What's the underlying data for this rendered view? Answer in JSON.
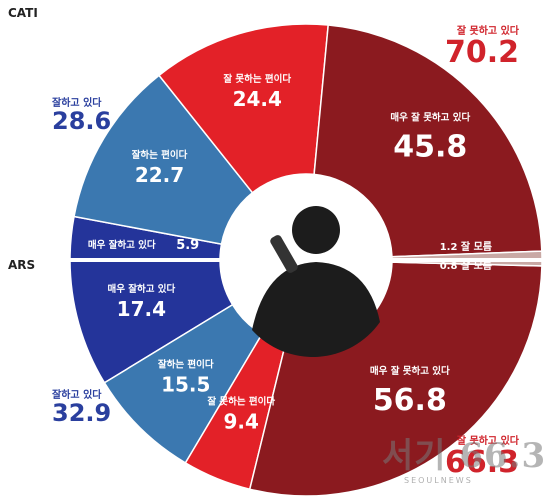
{
  "chart_data": {
    "type": "pie",
    "style": "donut, split into two halves",
    "groups": [
      {
        "name": "CATI",
        "side": "top",
        "slices": [
          {
            "label": "매우 잘하고 있다",
            "value": 5.9,
            "color": "#24349a"
          },
          {
            "label": "잘하는 편이다",
            "value": 22.7,
            "color": "#3b78b0"
          },
          {
            "label": "잘 못하는 편이다",
            "value": 24.4,
            "color": "#e32128"
          },
          {
            "label": "매우 잘 못하고 있다",
            "value": 45.8,
            "color": "#8b1a1f"
          },
          {
            "label": "잘 모름",
            "value": 1.2,
            "color": "#c9a9a5"
          }
        ],
        "totals": [
          {
            "label": "잘하고 있다",
            "value": "28.6"
          },
          {
            "label": "잘 못하고 있다",
            "value": "70.2"
          }
        ]
      },
      {
        "name": "ARS",
        "side": "bottom",
        "slices": [
          {
            "label": "매우 잘하고 있다",
            "value": 17.4,
            "color": "#24349a"
          },
          {
            "label": "잘하는 편이다",
            "value": 15.5,
            "color": "#3b78b0"
          },
          {
            "label": "잘 못하는 편이다",
            "value": 9.4,
            "color": "#e32128"
          },
          {
            "label": "매우 잘 못하고 있다",
            "value": 56.8,
            "color": "#8b1a1f"
          },
          {
            "label": "잘 모름",
            "value": 0.8,
            "color": "#c9a9a5"
          }
        ],
        "totals": [
          {
            "label": "잘하고 있다",
            "value": "32.9"
          },
          {
            "label": "잘 못하고 있다",
            "value": "66.3"
          }
        ]
      }
    ]
  },
  "labels": {
    "cati": "CATI",
    "ars": "ARS"
  },
  "watermark": {
    "text": "서기 66.3",
    "sub": "SEOULNEWS"
  },
  "colors": {
    "very_good": "#24349a",
    "good": "#3b78b0",
    "bad": "#e32128",
    "very_bad": "#8b1a1f",
    "unknown": "#c9a9a5",
    "divider": "#ffffff",
    "accent_total_left": "#2a3f9e",
    "accent_total_right": "#d0232b"
  }
}
